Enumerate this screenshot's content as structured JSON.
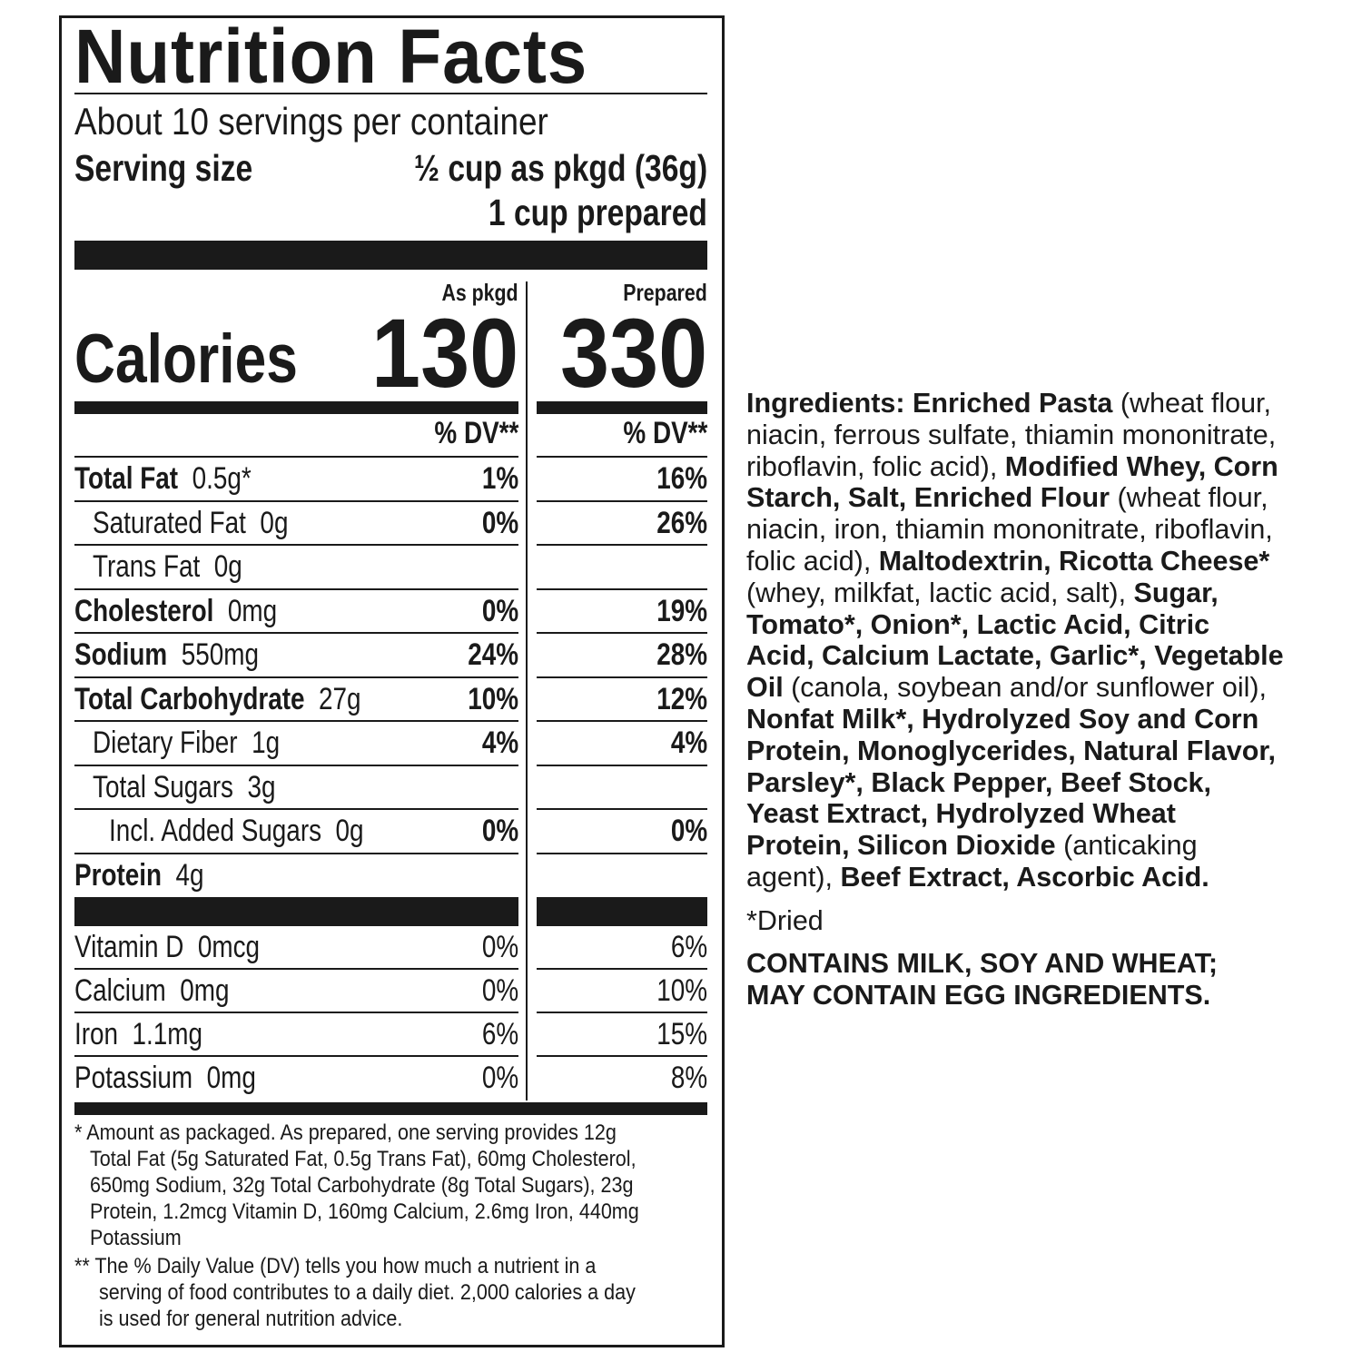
{
  "label": {
    "title": "Nutrition Facts",
    "servings": "About 10 servings per container",
    "serving_size_label": "Serving size",
    "serving_size_pkgd": "½ cup as pkgd (36g)",
    "serving_size_prepared": "1 cup prepared",
    "col_pkgd": "As pkgd",
    "col_prepared": "Prepared",
    "calories_label": "Calories",
    "calories_pkgd": "130",
    "calories_prepared": "330",
    "dv_header": "% DV**",
    "nutrients": [
      {
        "name": "Total Fat",
        "amount": "0.5g*",
        "bold": true,
        "indent": 0,
        "pkgd": "1%",
        "prepared": "16%"
      },
      {
        "name": "Saturated Fat",
        "amount": "0g",
        "bold": false,
        "indent": 1,
        "pkgd": "0%",
        "prepared": "26%"
      },
      {
        "name": "Trans Fat",
        "amount": "0g",
        "bold": false,
        "indent": 1,
        "pkgd": "",
        "prepared": ""
      },
      {
        "name": "Cholesterol",
        "amount": "0mg",
        "bold": true,
        "indent": 0,
        "pkgd": "0%",
        "prepared": "19%"
      },
      {
        "name": "Sodium",
        "amount": "550mg",
        "bold": true,
        "indent": 0,
        "pkgd": "24%",
        "prepared": "28%"
      },
      {
        "name": "Total Carbohydrate",
        "amount": "27g",
        "bold": true,
        "indent": 0,
        "pkgd": "10%",
        "prepared": "12%"
      },
      {
        "name": "Dietary Fiber",
        "amount": "1g",
        "bold": false,
        "indent": 1,
        "pkgd": "4%",
        "prepared": "4%"
      },
      {
        "name": "Total Sugars",
        "amount": "3g",
        "bold": false,
        "indent": 1,
        "pkgd": "",
        "prepared": ""
      },
      {
        "name": "Incl. Added Sugars",
        "amount": "0g",
        "bold": false,
        "indent": 2,
        "pkgd": "0%",
        "prepared": "0%"
      },
      {
        "name": "Protein",
        "amount": "4g",
        "bold": true,
        "indent": 0,
        "pkgd": "",
        "prepared": ""
      }
    ],
    "vitamins": [
      {
        "name": "Vitamin D",
        "amount": "0mcg",
        "pkgd": "0%",
        "prepared": "6%"
      },
      {
        "name": "Calcium",
        "amount": "0mg",
        "pkgd": "0%",
        "prepared": "10%"
      },
      {
        "name": "Iron",
        "amount": "1.1mg",
        "pkgd": "6%",
        "prepared": "15%"
      },
      {
        "name": "Potassium",
        "amount": "0mg",
        "pkgd": "0%",
        "prepared": "8%"
      }
    ],
    "footnote_1": [
      "* Amount as packaged. As prepared, one serving provides 12g",
      "Total Fat (5g Saturated Fat, 0.5g Trans Fat), 60mg Cholesterol,",
      "650mg Sodium, 32g Total Carbohydrate (8g Total Sugars), 23g",
      "Protein, 1.2mcg Vitamin D, 160mg Calcium, 2.6mg Iron, 440mg",
      "Potassium"
    ],
    "footnote_2": [
      "** The % Daily Value (DV) tells you how much a nutrient in a",
      "serving of food contributes to a daily diet. 2,000 calories a day",
      "is used for general nutrition advice."
    ]
  },
  "ingredients": {
    "lines": [
      [
        {
          "t": "Ingredients: Enriched Pasta",
          "b": true
        },
        {
          "t": " (wheat flour,",
          "b": false
        }
      ],
      [
        {
          "t": "niacin, ferrous sulfate, thiamin mononitrate,",
          "b": false
        }
      ],
      [
        {
          "t": "riboflavin, folic acid), ",
          "b": false
        },
        {
          "t": "Modified Whey, Corn",
          "b": true
        }
      ],
      [
        {
          "t": "Starch, Salt, Enriched Flour",
          "b": true
        },
        {
          "t": " (wheat flour,",
          "b": false
        }
      ],
      [
        {
          "t": "niacin, iron, thiamin mononitrate, riboflavin,",
          "b": false
        }
      ],
      [
        {
          "t": "folic acid), ",
          "b": false
        },
        {
          "t": "Maltodextrin, Ricotta Cheese*",
          "b": true
        }
      ],
      [
        {
          "t": "(whey, milkfat, lactic acid, salt), ",
          "b": false
        },
        {
          "t": "Sugar,",
          "b": true
        }
      ],
      [
        {
          "t": "Tomato*, Onion*, Lactic Acid, Citric",
          "b": true
        }
      ],
      [
        {
          "t": "Acid, Calcium Lactate, Garlic*, Vegetable",
          "b": true
        }
      ],
      [
        {
          "t": "Oil",
          "b": true
        },
        {
          "t": " (canola, soybean and/or sunflower oil),",
          "b": false
        }
      ],
      [
        {
          "t": "Nonfat Milk*, Hydrolyzed Soy and Corn",
          "b": true
        }
      ],
      [
        {
          "t": "Protein, Monoglycerides, Natural Flavor,",
          "b": true
        }
      ],
      [
        {
          "t": "Parsley*, Black Pepper, Beef Stock,",
          "b": true
        }
      ],
      [
        {
          "t": "Yeast Extract, Hydrolyzed Wheat",
          "b": true
        }
      ],
      [
        {
          "t": "Protein, Silicon Dioxide",
          "b": true
        },
        {
          "t": " (anticaking",
          "b": false
        }
      ],
      [
        {
          "t": "agent), ",
          "b": false
        },
        {
          "t": "Beef Extract, Ascorbic Acid.",
          "b": true
        }
      ]
    ],
    "dried_note": "*Dried",
    "allergens": [
      "CONTAINS MILK, SOY AND WHEAT;",
      "MAY CONTAIN EGG INGREDIENTS."
    ]
  }
}
